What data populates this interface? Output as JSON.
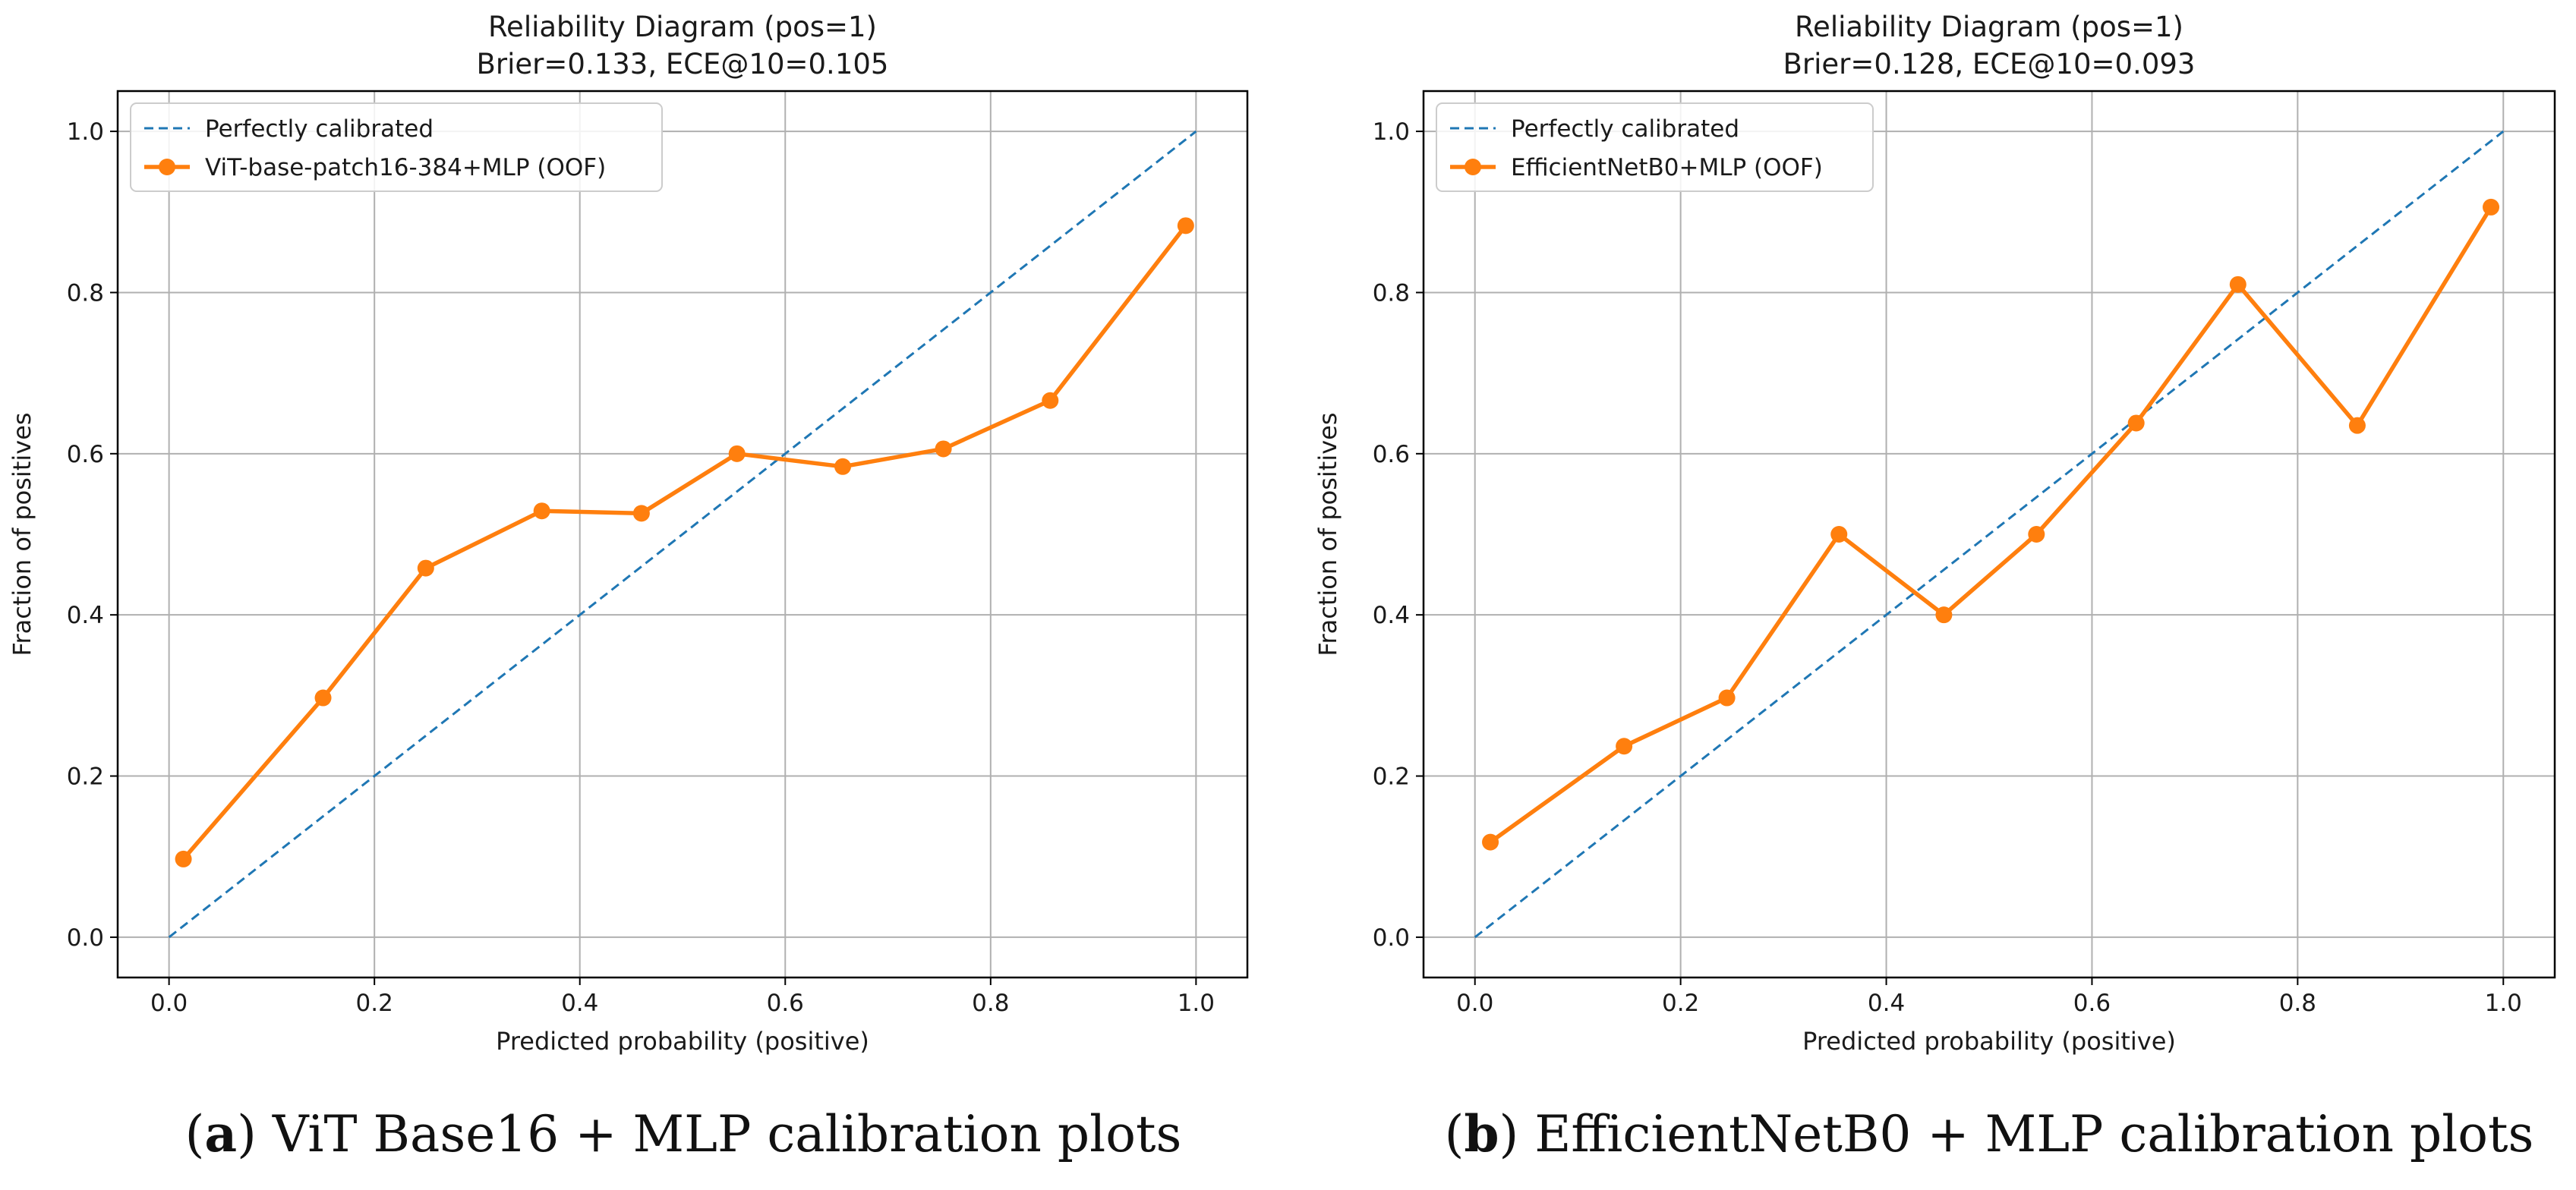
{
  "chart_data": [
    {
      "type": "line",
      "title": "Reliability Diagram (pos=1)",
      "subtitle": "Brier=0.133, ECE@10=0.105",
      "xlabel": "Predicted probability (positive)",
      "ylabel": "Fraction of positives",
      "xlim": [
        -0.05,
        1.05
      ],
      "ylim": [
        -0.05,
        1.05
      ],
      "xticks": [
        "0.0",
        "0.2",
        "0.4",
        "0.6",
        "0.8",
        "1.0"
      ],
      "yticks": [
        "0.0",
        "0.2",
        "0.4",
        "0.6",
        "0.8",
        "1.0"
      ],
      "grid": true,
      "legend_position": "top-left",
      "reference": {
        "name": "Perfectly calibrated",
        "x": [
          0,
          1
        ],
        "y": [
          0,
          1
        ],
        "color": "#1f77b4",
        "style": "dashed"
      },
      "series": [
        {
          "name": "ViT-base-patch16-384+MLP (OOF)",
          "color": "#ff7f0e",
          "x": [
            0.014,
            0.15,
            0.25,
            0.363,
            0.46,
            0.553,
            0.656,
            0.754,
            0.858,
            0.99
          ],
          "y": [
            0.097,
            0.297,
            0.458,
            0.529,
            0.526,
            0.6,
            0.584,
            0.606,
            0.666,
            0.883
          ]
        }
      ],
      "caption_letter": "a",
      "caption_text": " ViT Base16 + MLP calibration plots"
    },
    {
      "type": "line",
      "title": "Reliability Diagram (pos=1)",
      "subtitle": "Brier=0.128, ECE@10=0.093",
      "xlabel": "Predicted probability (positive)",
      "ylabel": "Fraction of positives",
      "xlim": [
        -0.05,
        1.05
      ],
      "ylim": [
        -0.05,
        1.05
      ],
      "xticks": [
        "0.0",
        "0.2",
        "0.4",
        "0.6",
        "0.8",
        "1.0"
      ],
      "yticks": [
        "0.0",
        "0.2",
        "0.4",
        "0.6",
        "0.8",
        "1.0"
      ],
      "grid": true,
      "legend_position": "top-left",
      "reference": {
        "name": "Perfectly calibrated",
        "x": [
          0,
          1
        ],
        "y": [
          0,
          1
        ],
        "color": "#1f77b4",
        "style": "dashed"
      },
      "series": [
        {
          "name": "EfficientNetB0+MLP (OOF)",
          "color": "#ff7f0e",
          "x": [
            0.015,
            0.145,
            0.245,
            0.354,
            0.456,
            0.546,
            0.643,
            0.742,
            0.858,
            0.988
          ],
          "y": [
            0.118,
            0.237,
            0.297,
            0.5,
            0.4,
            0.5,
            0.638,
            0.81,
            0.635,
            0.906
          ]
        }
      ],
      "caption_letter": "b",
      "caption_text": " EfficientNetB0 + MLP calibration plots"
    }
  ]
}
